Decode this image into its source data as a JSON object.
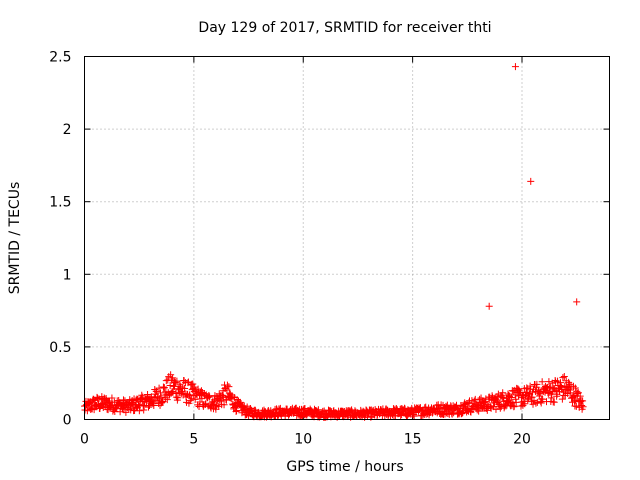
{
  "chart_data": {
    "type": "scatter",
    "title": "Day 129 of 2017, SRMTID for receiver thti",
    "xlabel": "GPS time / hours",
    "ylabel": "SRMTID / TECUs",
    "xlim": [
      0,
      24
    ],
    "ylim": [
      0,
      2.5
    ],
    "xticks": [
      0,
      5,
      10,
      15,
      20
    ],
    "xtick_labels": [
      "0",
      "5",
      "10",
      "15",
      "20"
    ],
    "yticks": [
      0,
      0.5,
      1,
      1.5,
      2,
      2.5
    ],
    "ytick_labels": [
      "0",
      "0.5",
      "1",
      "1.5",
      "2",
      "2.5"
    ],
    "grid": true,
    "marker": "+",
    "series_color": "#ff0000",
    "outliers": [
      {
        "x": 18.5,
        "y": 0.78
      },
      {
        "x": 19.7,
        "y": 2.43
      },
      {
        "x": 20.4,
        "y": 1.64
      },
      {
        "x": 22.5,
        "y": 0.81
      }
    ],
    "trend_profile": [
      [
        0.0,
        0.08
      ],
      [
        0.5,
        0.11
      ],
      [
        1.0,
        0.11
      ],
      [
        1.5,
        0.1
      ],
      [
        2.0,
        0.09
      ],
      [
        2.5,
        0.11
      ],
      [
        3.0,
        0.13
      ],
      [
        3.5,
        0.17
      ],
      [
        4.0,
        0.23
      ],
      [
        4.5,
        0.2
      ],
      [
        5.0,
        0.17
      ],
      [
        5.5,
        0.13
      ],
      [
        6.0,
        0.12
      ],
      [
        6.5,
        0.18
      ],
      [
        7.0,
        0.09
      ],
      [
        7.5,
        0.05
      ],
      [
        8.0,
        0.04
      ],
      [
        9.0,
        0.05
      ],
      [
        10.0,
        0.05
      ],
      [
        11.0,
        0.04
      ],
      [
        12.0,
        0.04
      ],
      [
        13.0,
        0.04
      ],
      [
        14.0,
        0.05
      ],
      [
        15.0,
        0.05
      ],
      [
        16.0,
        0.07
      ],
      [
        17.0,
        0.07
      ],
      [
        17.5,
        0.09
      ],
      [
        18.0,
        0.1
      ],
      [
        18.5,
        0.11
      ],
      [
        19.0,
        0.13
      ],
      [
        19.5,
        0.15
      ],
      [
        20.0,
        0.15
      ],
      [
        20.5,
        0.17
      ],
      [
        21.0,
        0.19
      ],
      [
        21.5,
        0.2
      ],
      [
        22.0,
        0.22
      ],
      [
        22.5,
        0.15
      ],
      [
        22.8,
        0.09
      ]
    ]
  }
}
